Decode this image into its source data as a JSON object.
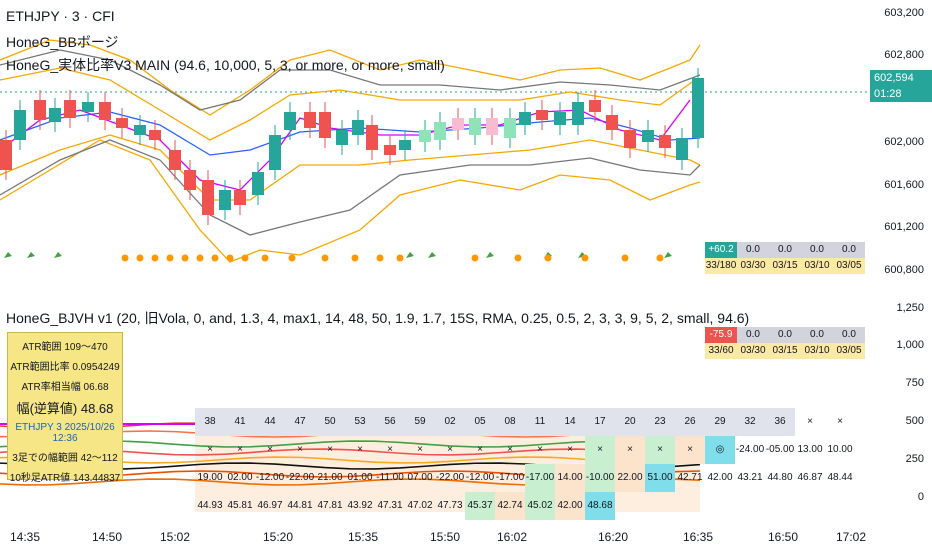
{
  "main": {
    "title1": "ETHJPY · 3 · CFI",
    "title2": "HoneG_BBボージ",
    "title3": "HoneG_実体比率V3 MAIN (94.6, 10,000, 5, 3, or more, or more, small)",
    "price_axis": [
      "603,200",
      "602,800",
      "601,600",
      "601,200",
      "600,800",
      "602,000"
    ],
    "current_price": "602,594",
    "countdown": "01:28",
    "stats_row1": [
      "+60.2",
      "0.0",
      "0.0",
      "0.0",
      "0.0"
    ],
    "stats_row2": [
      "33/180",
      "03/30",
      "03/15",
      "03/10",
      "03/05"
    ]
  },
  "sub": {
    "title": "HoneG_BJVH v1 (20, 旧Vola, 0, and, 1.3, 4, max1, 14, 48, 50, 1.9, 1.7, 15S, RMA, 0.25, 0.5, 2, 3, 3, 9, 5, 2, small, 94.6)",
    "axis": [
      "1,250",
      "1,000",
      "750",
      "500",
      "250",
      "0"
    ],
    "stats_row1": [
      "-75.9",
      "0.0",
      "0.0",
      "0.0",
      "0.0"
    ],
    "stats_row2": [
      "33/60",
      "03/30",
      "03/15",
      "03/10",
      "03/05"
    ],
    "info": {
      "line1": "ATR範囲 109〜470",
      "line2": "ATR範囲比率 0.0954249",
      "line3": "ATR率相当幅 06.68",
      "line4": "幅(逆算値) 48.68",
      "line5": "ETHJPY 3 2025/10/26 12:36",
      "line6": "3足での幅範囲 42〜112",
      "line7": "10秒足ATR値 143.44837"
    },
    "grid_head": [
      "38",
      "41",
      "44",
      "47",
      "50",
      "53",
      "56",
      "59",
      "02",
      "05",
      "08",
      "11",
      "14",
      "17",
      "20",
      "23",
      "26",
      "29",
      "32",
      "36"
    ],
    "grid_mid": [
      "×",
      "×",
      "×",
      "×",
      "×",
      "×",
      "×",
      "×",
      "×",
      "×",
      "×",
      "×",
      "×",
      "×",
      "×",
      "×",
      "×",
      "×",
      "×",
      "◎"
    ],
    "grid_low": [
      "-24.00",
      "-05.00",
      "13.00",
      "10.00",
      "19.00",
      "02.00",
      "-12.00",
      "-22.00",
      "21.00",
      "01.00",
      "-11.00",
      "07.00",
      "-22.00",
      "-12.00",
      "-17.00",
      "-17.00",
      "14.00",
      "-10.00",
      "22.00",
      "51.00"
    ],
    "grid_bot": [
      "42.71",
      "42.00",
      "43.21",
      "44.80",
      "46.87",
      "48.44",
      "44.93",
      "45.81",
      "46.97",
      "44.81",
      "47.81",
      "43.92",
      "47.31",
      "47.02",
      "47.73",
      "45.37",
      "42.74",
      "45.02",
      "42.00",
      "48.68"
    ]
  },
  "time_axis": [
    "14:35",
    "14:50",
    "15:02",
    "15:20",
    "15:35",
    "15:50",
    "16:02",
    "16:20",
    "16:35",
    "16:50",
    "17:02"
  ],
  "colors": {
    "up": "#26a69a",
    "down": "#ef5350",
    "upLight": "#8fe3b8",
    "downLight": "#f8bbd0",
    "band": "#f7a700",
    "gray": "#777777",
    "blue": "#2962ff",
    "purple": "#d500f9"
  }
}
